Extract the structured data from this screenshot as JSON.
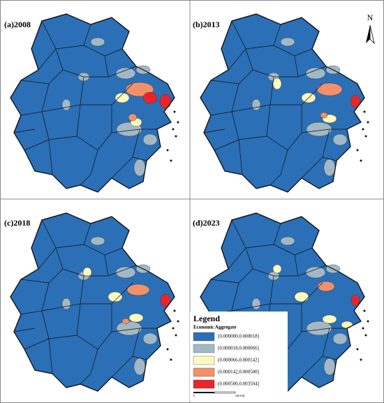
{
  "panels": [
    {
      "label": "(a)2008"
    },
    {
      "label": "(b)2013"
    },
    {
      "label": "(c)2018"
    },
    {
      "label": "(d)2023"
    }
  ],
  "north": "N",
  "legend": {
    "title": "Legend",
    "subtitle": "Economic Aggregate",
    "items": [
      {
        "label": "[0.000000,0.000018]",
        "color": "#2b6fb6"
      },
      {
        "label": "(0.000018,0.000066]",
        "color": "#a3b8c6"
      },
      {
        "label": "(0.000066,0.000142]",
        "color": "#fcf9bf"
      },
      {
        "label": "(0.000142,0.000500]",
        "color": "#f1916b"
      },
      {
        "label": "(0.000500,0.003504]",
        "color": "#e8262a"
      }
    ]
  },
  "scale_bar": {
    "start": "0",
    "end": "200 KM"
  }
}
